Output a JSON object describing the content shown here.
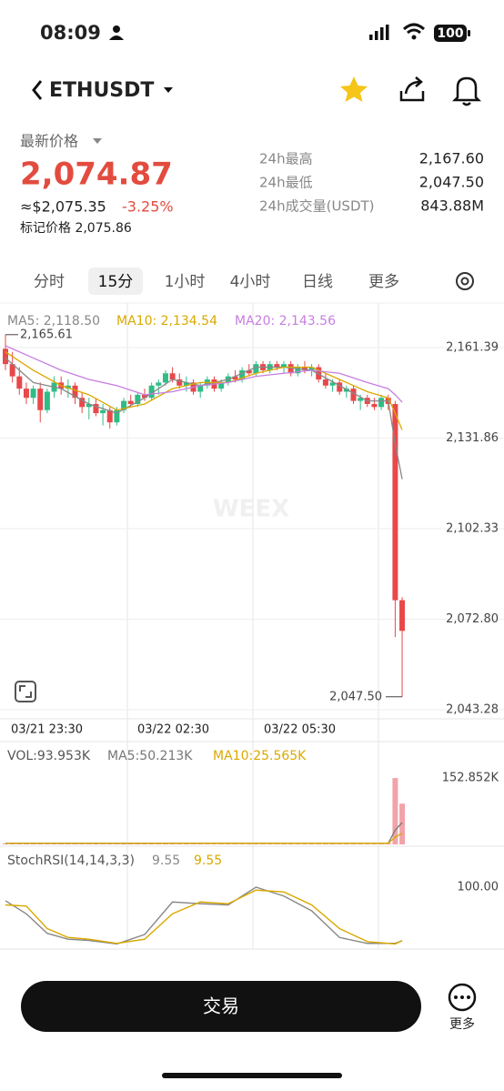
{
  "status": {
    "time": "08:09",
    "battery": "100"
  },
  "header": {
    "symbol": "ETHUSDT"
  },
  "price": {
    "label": "最新价格",
    "last": "2,074.87",
    "usd": "≈$2,075.35",
    "change": "-3.25%",
    "mark": "标记价格 2,075.86"
  },
  "stats": [
    {
      "label": "24h最高",
      "value": "2,167.60"
    },
    {
      "label": "24h最低",
      "value": "2,047.50"
    },
    {
      "label": "24h成交量(USDT)",
      "value": "843.88M"
    }
  ],
  "tabs": [
    "分时",
    "15分",
    "1小时",
    "4小时",
    "日线",
    "更多"
  ],
  "selected_tab": 1,
  "watermark": "WEEX",
  "chart_data": [
    {
      "type": "candlestick",
      "up_color": "#2ebd85",
      "down_color": "#e8484a",
      "ylim": [
        2040.31,
        2172.37
      ],
      "yticks": [
        {
          "value": 2161.39,
          "label": "2,161.39"
        },
        {
          "value": 2131.86,
          "label": "2,131.86"
        },
        {
          "value": 2102.33,
          "label": "2,102.33"
        },
        {
          "value": 2072.8,
          "label": "2,072.80"
        },
        {
          "value": 2043.28,
          "label": "2,043.28"
        }
      ],
      "x_labels": [
        "03/21 23:30",
        "03/22 02:30",
        "03/22 05:30"
      ],
      "high": {
        "value": 2165.61,
        "label": "2,165.61"
      },
      "low": {
        "value": 2047.5,
        "label": "2,047.50"
      },
      "candles": [
        [
          2161,
          2165.61,
          2154,
          2156
        ],
        [
          2156,
          2160,
          2150,
          2152
        ],
        [
          2152,
          2155,
          2146,
          2148
        ],
        [
          2148,
          2150,
          2143,
          2145
        ],
        [
          2145,
          2149,
          2143,
          2148
        ],
        [
          2148,
          2150,
          2137,
          2141
        ],
        [
          2141,
          2148,
          2140,
          2147
        ],
        [
          2147,
          2152,
          2145,
          2150
        ],
        [
          2150,
          2152,
          2146,
          2148
        ],
        [
          2148,
          2151,
          2145,
          2149
        ],
        [
          2149,
          2150,
          2143,
          2145
        ],
        [
          2145,
          2147,
          2140,
          2142
        ],
        [
          2142,
          2145,
          2138,
          2143
        ],
        [
          2143,
          2145,
          2139,
          2140
        ],
        [
          2140,
          2143,
          2136,
          2141
        ],
        [
          2141,
          2142,
          2135,
          2137
        ],
        [
          2137,
          2142,
          2136,
          2141
        ],
        [
          2141,
          2145,
          2140,
          2144
        ],
        [
          2144,
          2146,
          2142,
          2143
        ],
        [
          2143,
          2147,
          2142,
          2146
        ],
        [
          2146,
          2148,
          2144,
          2145
        ],
        [
          2145,
          2150,
          2144,
          2149
        ],
        [
          2149,
          2151,
          2146,
          2150
        ],
        [
          2150,
          2154,
          2149,
          2153
        ],
        [
          2153,
          2155,
          2150,
          2151
        ],
        [
          2151,
          2153,
          2148,
          2149
        ],
        [
          2149,
          2152,
          2147,
          2150
        ],
        [
          2150,
          2151,
          2146,
          2147
        ],
        [
          2147,
          2150,
          2145,
          2149
        ],
        [
          2149,
          2152,
          2148,
          2151
        ],
        [
          2151,
          2152,
          2147,
          2148
        ],
        [
          2148,
          2151,
          2147,
          2150
        ],
        [
          2150,
          2153,
          2149,
          2152
        ],
        [
          2152,
          2154,
          2150,
          2151
        ],
        [
          2151,
          2155,
          2150,
          2154
        ],
        [
          2154,
          2156,
          2152,
          2153
        ],
        [
          2153,
          2157,
          2152,
          2156
        ],
        [
          2156,
          2157,
          2153,
          2154
        ],
        [
          2154,
          2157,
          2153,
          2156
        ],
        [
          2156,
          2157,
          2154,
          2155
        ],
        [
          2155,
          2157,
          2153,
          2156
        ],
        [
          2156,
          2157,
          2152,
          2153
        ],
        [
          2153,
          2156,
          2152,
          2155
        ],
        [
          2155,
          2157,
          2153,
          2154
        ],
        [
          2154,
          2156,
          2152,
          2155
        ],
        [
          2155,
          2156,
          2150,
          2151
        ],
        [
          2151,
          2153,
          2148,
          2149
        ],
        [
          2149,
          2151,
          2147,
          2150
        ],
        [
          2150,
          2151,
          2146,
          2147
        ],
        [
          2147,
          2149,
          2145,
          2148
        ],
        [
          2148,
          2149,
          2143,
          2144
        ],
        [
          2144,
          2146,
          2141,
          2145
        ],
        [
          2145,
          2146,
          2142,
          2143
        ],
        [
          2143,
          2145,
          2141,
          2142
        ],
        [
          2142,
          2146,
          2141,
          2145
        ],
        [
          2145,
          2146,
          2141,
          2143
        ],
        [
          2143,
          2144,
          2067,
          2079
        ],
        [
          2079,
          2080,
          2047.5,
          2069
        ]
      ],
      "series": [
        {
          "name": "MA5: 2,118.50",
          "color": "#888888",
          "x": [
            0,
            4,
            8,
            12,
            16,
            20,
            24,
            28,
            32,
            36,
            40,
            44,
            48,
            52,
            55,
            56,
            57
          ],
          "values": [
            2158,
            2150,
            2148,
            2143,
            2140,
            2145,
            2151,
            2149,
            2151,
            2155,
            2155,
            2154,
            2149,
            2144,
            2144,
            2130,
            2118.5
          ]
        },
        {
          "name": "MA10: 2,134.54",
          "color": "#d9a900",
          "x": [
            0,
            4,
            8,
            12,
            16,
            20,
            24,
            28,
            32,
            36,
            40,
            44,
            48,
            52,
            55,
            56,
            57
          ],
          "values": [
            2160,
            2154,
            2149,
            2146,
            2141,
            2143,
            2148,
            2150,
            2150,
            2153,
            2155,
            2155,
            2151,
            2147,
            2145,
            2140,
            2134.54
          ]
        },
        {
          "name": "MA20: 2,143.56",
          "color": "#c77ee0",
          "x": [
            0,
            4,
            8,
            12,
            16,
            20,
            24,
            28,
            32,
            36,
            40,
            44,
            48,
            52,
            55,
            56,
            57
          ],
          "values": [
            2162,
            2158,
            2154,
            2151,
            2149,
            2146,
            2147,
            2149,
            2150,
            2152,
            2153,
            2154,
            2153,
            2150,
            2148,
            2146,
            2143.56
          ]
        }
      ]
    },
    {
      "type": "bar",
      "title": "VOL:93.953K",
      "color": "#f2a3a8",
      "ylim": [
        0,
        174000
      ],
      "yticks": [
        {
          "value": 152852,
          "label": "152.852K"
        }
      ],
      "values": [
        2600,
        2400,
        2300,
        2200,
        2100,
        2500,
        2300,
        2200,
        2100,
        2000,
        2200,
        2300,
        2100,
        2200,
        2400,
        2300,
        2200,
        2100,
        1900,
        2000,
        2100,
        2200,
        2000,
        2100,
        1900,
        1800,
        1900,
        2000,
        1800,
        1900,
        2000,
        1800,
        1900,
        2100,
        2000,
        1800,
        1900,
        1800,
        1700,
        1800,
        1900,
        1800,
        1700,
        1800,
        1900,
        2000,
        2100,
        2000,
        2200,
        2300,
        2500,
        2400,
        2600,
        2700,
        2800,
        2900,
        152852,
        93953
      ],
      "series": [
        {
          "name": "MA5:50.213K",
          "color": "#777777",
          "x": [
            0,
            54,
            55,
            56,
            57
          ],
          "values": [
            2500,
            2400,
            2500,
            33000,
            50213
          ]
        },
        {
          "name": "MA10:25.565K",
          "color": "#d9a900",
          "x": [
            0,
            54,
            55,
            56,
            57
          ],
          "values": [
            2600,
            2500,
            2500,
            17000,
            25565
          ]
        }
      ]
    },
    {
      "type": "line",
      "title": "StochRSI(14,14,3,3)",
      "ylim": [
        0,
        100
      ],
      "yticks": [
        {
          "value": 100,
          "label": "100.00"
        }
      ],
      "series": [
        {
          "name": "9.55",
          "color": "#888888",
          "x": [
            0,
            3,
            6,
            9,
            12,
            16,
            20,
            24,
            28,
            32,
            36,
            40,
            44,
            48,
            52,
            56,
            57
          ],
          "values": [
            77,
            55,
            22,
            12,
            10,
            4,
            20,
            75,
            72,
            70,
            100,
            85,
            60,
            15,
            5,
            5,
            9.55
          ]
        },
        {
          "name": "9.55",
          "color": "#d9a900",
          "x": [
            0,
            3,
            6,
            9,
            12,
            16,
            20,
            24,
            28,
            32,
            36,
            40,
            44,
            48,
            52,
            56,
            57
          ],
          "values": [
            70,
            68,
            30,
            15,
            12,
            5,
            12,
            55,
            75,
            72,
            95,
            92,
            70,
            30,
            8,
            4,
            9.55
          ]
        }
      ]
    }
  ],
  "button": "交易",
  "more": "更多"
}
